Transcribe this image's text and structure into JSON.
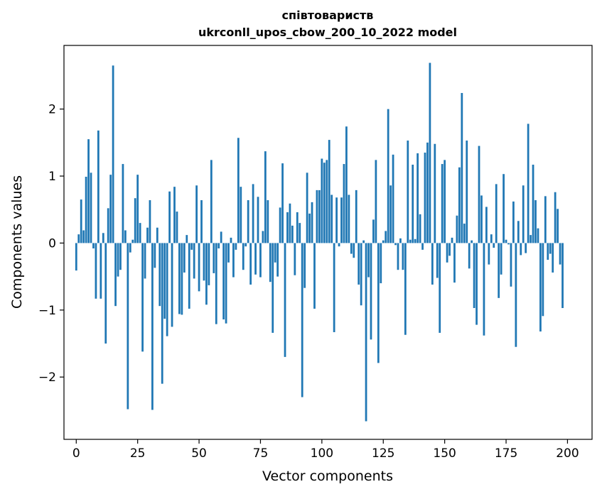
{
  "chart_data": {
    "type": "bar",
    "title_line1": "співтовариств",
    "title_line2": "ukrconll_upos_cbow_200_10_2022 model",
    "xlabel": "Vector components",
    "ylabel": "Components values",
    "xlim": [
      -5,
      210
    ],
    "ylim": [
      -2.93,
      2.95
    ],
    "xticks": [
      0,
      25,
      50,
      75,
      100,
      125,
      150,
      175,
      200
    ],
    "xtick_labels": [
      "0",
      "25",
      "50",
      "75",
      "100",
      "125",
      "150",
      "175",
      "200"
    ],
    "yticks": [
      -2,
      -1,
      0,
      1,
      2
    ],
    "ytick_labels": [
      "−2",
      "−1",
      "0",
      "1",
      "2"
    ],
    "bar_color": "#1f77b4",
    "grid": false,
    "values": [
      -0.41,
      0.13,
      0.65,
      0.19,
      0.99,
      1.55,
      1.05,
      -0.08,
      -0.83,
      1.68,
      -0.83,
      0.15,
      -1.5,
      0.52,
      1.02,
      2.65,
      -0.94,
      -0.5,
      -0.4,
      1.18,
      0.19,
      -2.48,
      -0.14,
      0.05,
      0.67,
      1.02,
      0.3,
      -1.62,
      -0.53,
      0.23,
      0.64,
      -2.49,
      -0.37,
      0.23,
      -0.94,
      -2.1,
      -1.13,
      -1.39,
      0.77,
      -1.25,
      0.84,
      0.47,
      -1.06,
      -1.07,
      -0.44,
      0.12,
      -0.98,
      -0.1,
      -0.53,
      0.86,
      -0.72,
      0.64,
      -0.56,
      -0.92,
      -0.63,
      1.24,
      -0.45,
      -1.21,
      -0.08,
      0.17,
      -1.14,
      -1.2,
      -0.29,
      0.08,
      -0.51,
      -0.1,
      1.57,
      0.84,
      -0.4,
      -0.05,
      0.64,
      -0.62,
      0.88,
      -0.47,
      0.69,
      -0.51,
      0.18,
      1.37,
      0.64,
      -0.58,
      -1.34,
      -0.29,
      -0.5,
      0.53,
      1.19,
      -1.7,
      0.46,
      0.59,
      0.26,
      -0.48,
      0.46,
      0.3,
      -2.3,
      -0.67,
      1.05,
      0.44,
      0.61,
      -0.98,
      0.79,
      0.79,
      1.26,
      1.2,
      1.24,
      1.54,
      0.72,
      -1.33,
      0.68,
      -0.05,
      0.68,
      1.18,
      1.74,
      0.72,
      -0.16,
      -0.22,
      0.79,
      -0.62,
      -0.93,
      0.04,
      -2.66,
      -0.51,
      -1.44,
      0.35,
      1.24,
      -1.79,
      -0.6,
      0.04,
      0.18,
      2.0,
      0.86,
      1.32,
      -0.03,
      -0.4,
      0.07,
      -0.4,
      -1.37,
      1.53,
      0.05,
      1.17,
      0.06,
      1.34,
      0.43,
      -0.1,
      1.35,
      1.5,
      2.69,
      -0.62,
      1.48,
      -0.52,
      -1.34,
      1.18,
      1.24,
      -0.29,
      -0.19,
      0.08,
      -0.59,
      0.41,
      1.13,
      2.24,
      0.29,
      1.53,
      -0.38,
      0.04,
      -0.97,
      -1.22,
      1.45,
      0.71,
      -1.38,
      0.54,
      -0.32,
      0.13,
      -0.07,
      0.88,
      -0.82,
      -0.47,
      1.03,
      0.05,
      -0.02,
      -0.65,
      0.62,
      -1.55,
      0.33,
      -0.18,
      0.86,
      -0.15,
      1.78,
      0.12,
      1.17,
      0.64,
      0.22,
      -1.32,
      -1.09,
      0.7,
      -0.25,
      -0.16,
      -0.44,
      0.76,
      0.51,
      -0.32,
      -0.97
    ]
  }
}
